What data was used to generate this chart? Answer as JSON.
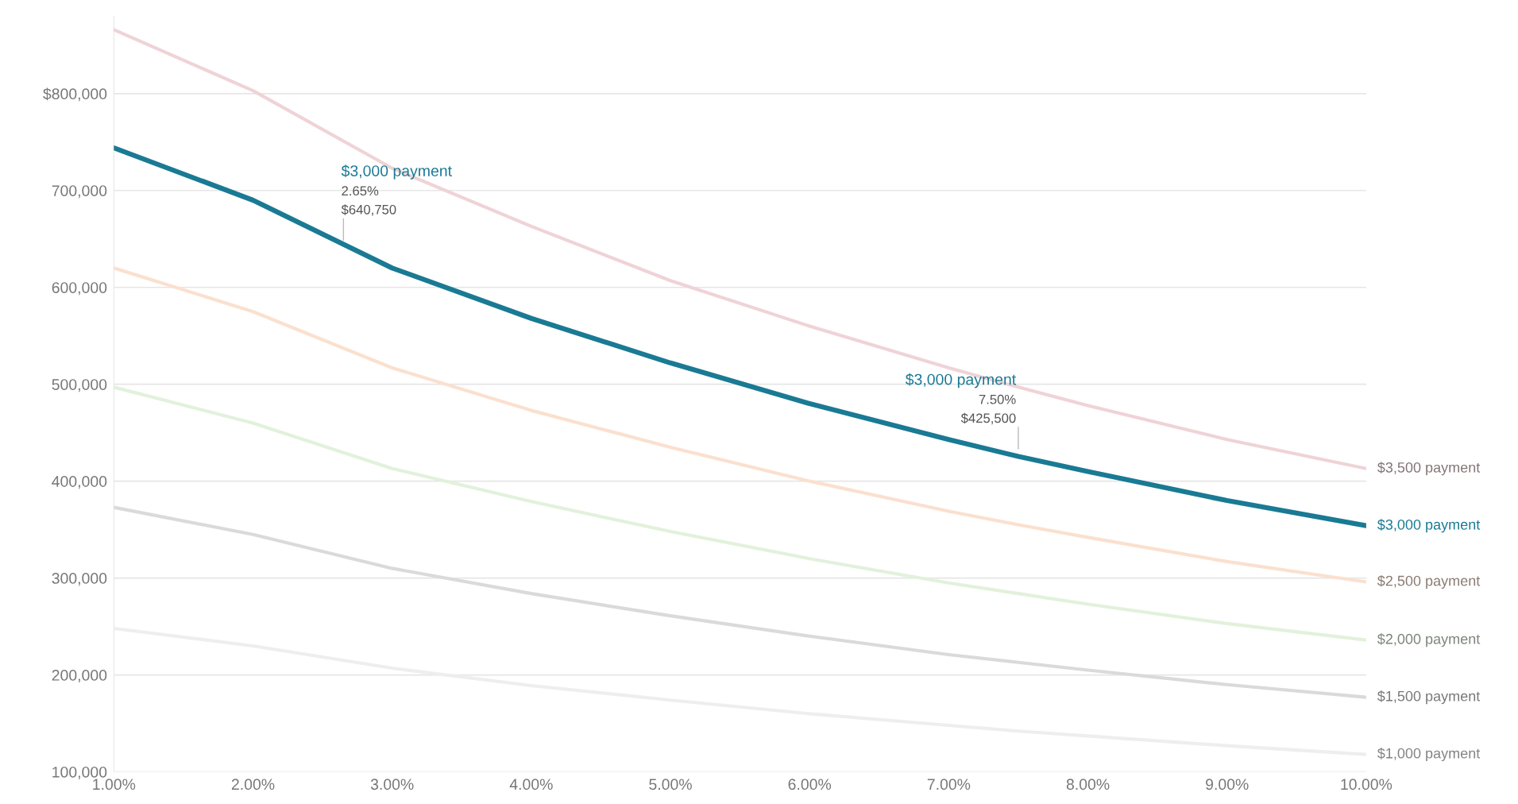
{
  "chart_data": {
    "type": "line",
    "x": [
      1,
      2,
      3,
      4,
      5,
      6,
      7,
      7.5,
      8,
      9,
      10
    ],
    "series": [
      {
        "name": "$3,500 payment",
        "color": "#efd3d6",
        "values": [
          866000,
          803000,
          723000,
          663000,
          607000,
          560000,
          517000,
          497000,
          478000,
          443000,
          413000
        ]
      },
      {
        "name": "$3,000 payment",
        "color": "#1a7a94",
        "values": [
          744000,
          690000,
          620000,
          568000,
          522000,
          480000,
          443000,
          425500,
          410000,
          380000,
          354000
        ]
      },
      {
        "name": "$2,500 payment",
        "color": "#fbe0cf",
        "values": [
          620000,
          575000,
          517000,
          473000,
          435000,
          400000,
          369000,
          355000,
          342000,
          317000,
          296000
        ]
      },
      {
        "name": "$2,000 payment",
        "color": "#e2f1dc",
        "values": [
          497000,
          460000,
          413000,
          379000,
          348000,
          320000,
          295000,
          284000,
          273000,
          253000,
          236000
        ]
      },
      {
        "name": "$1,500 payment",
        "color": "#dadada",
        "values": [
          373000,
          345000,
          310000,
          284000,
          261000,
          240000,
          221000,
          213000,
          205000,
          190000,
          177000
        ]
      },
      {
        "name": "$1,000 payment",
        "color": "#eeeeee",
        "values": [
          248000,
          230000,
          207000,
          189000,
          174000,
          160000,
          148000,
          142000,
          137000,
          127000,
          118000
        ]
      }
    ],
    "xlim": [
      1,
      10
    ],
    "xticks": [
      {
        "value": 1,
        "label": "1.00%"
      },
      {
        "value": 2,
        "label": "2.00%"
      },
      {
        "value": 3,
        "label": "3.00%"
      },
      {
        "value": 4,
        "label": "4.00%"
      },
      {
        "value": 5,
        "label": "5.00%"
      },
      {
        "value": 6,
        "label": "6.00%"
      },
      {
        "value": 7,
        "label": "7.00%"
      },
      {
        "value": 8,
        "label": "8.00%"
      },
      {
        "value": 9,
        "label": "9.00%"
      },
      {
        "value": 10,
        "label": "10.00%"
      }
    ],
    "ylim": [
      100000,
      880000
    ],
    "yticks": [
      {
        "value": 100000,
        "label": "100,000"
      },
      {
        "value": 200000,
        "label": "200,000"
      },
      {
        "value": 300000,
        "label": "300,000"
      },
      {
        "value": 400000,
        "label": "400,000"
      },
      {
        "value": 500000,
        "label": "500,000"
      },
      {
        "value": 600000,
        "label": "600,000"
      },
      {
        "value": 700000,
        "label": "700,000"
      },
      {
        "value": 800000,
        "label": "$800,000"
      }
    ],
    "grid": "y",
    "legend": false,
    "annotations": [
      "$3,000 payment",
      "2.65%",
      {
        "text": "$640,750",
        "x": 2.65,
        "y": 640750
      },
      "$3,000 payment",
      "7.50%",
      {
        "text": "$425,500",
        "x": 7.5,
        "y": 425500
      }
    ]
  }
}
